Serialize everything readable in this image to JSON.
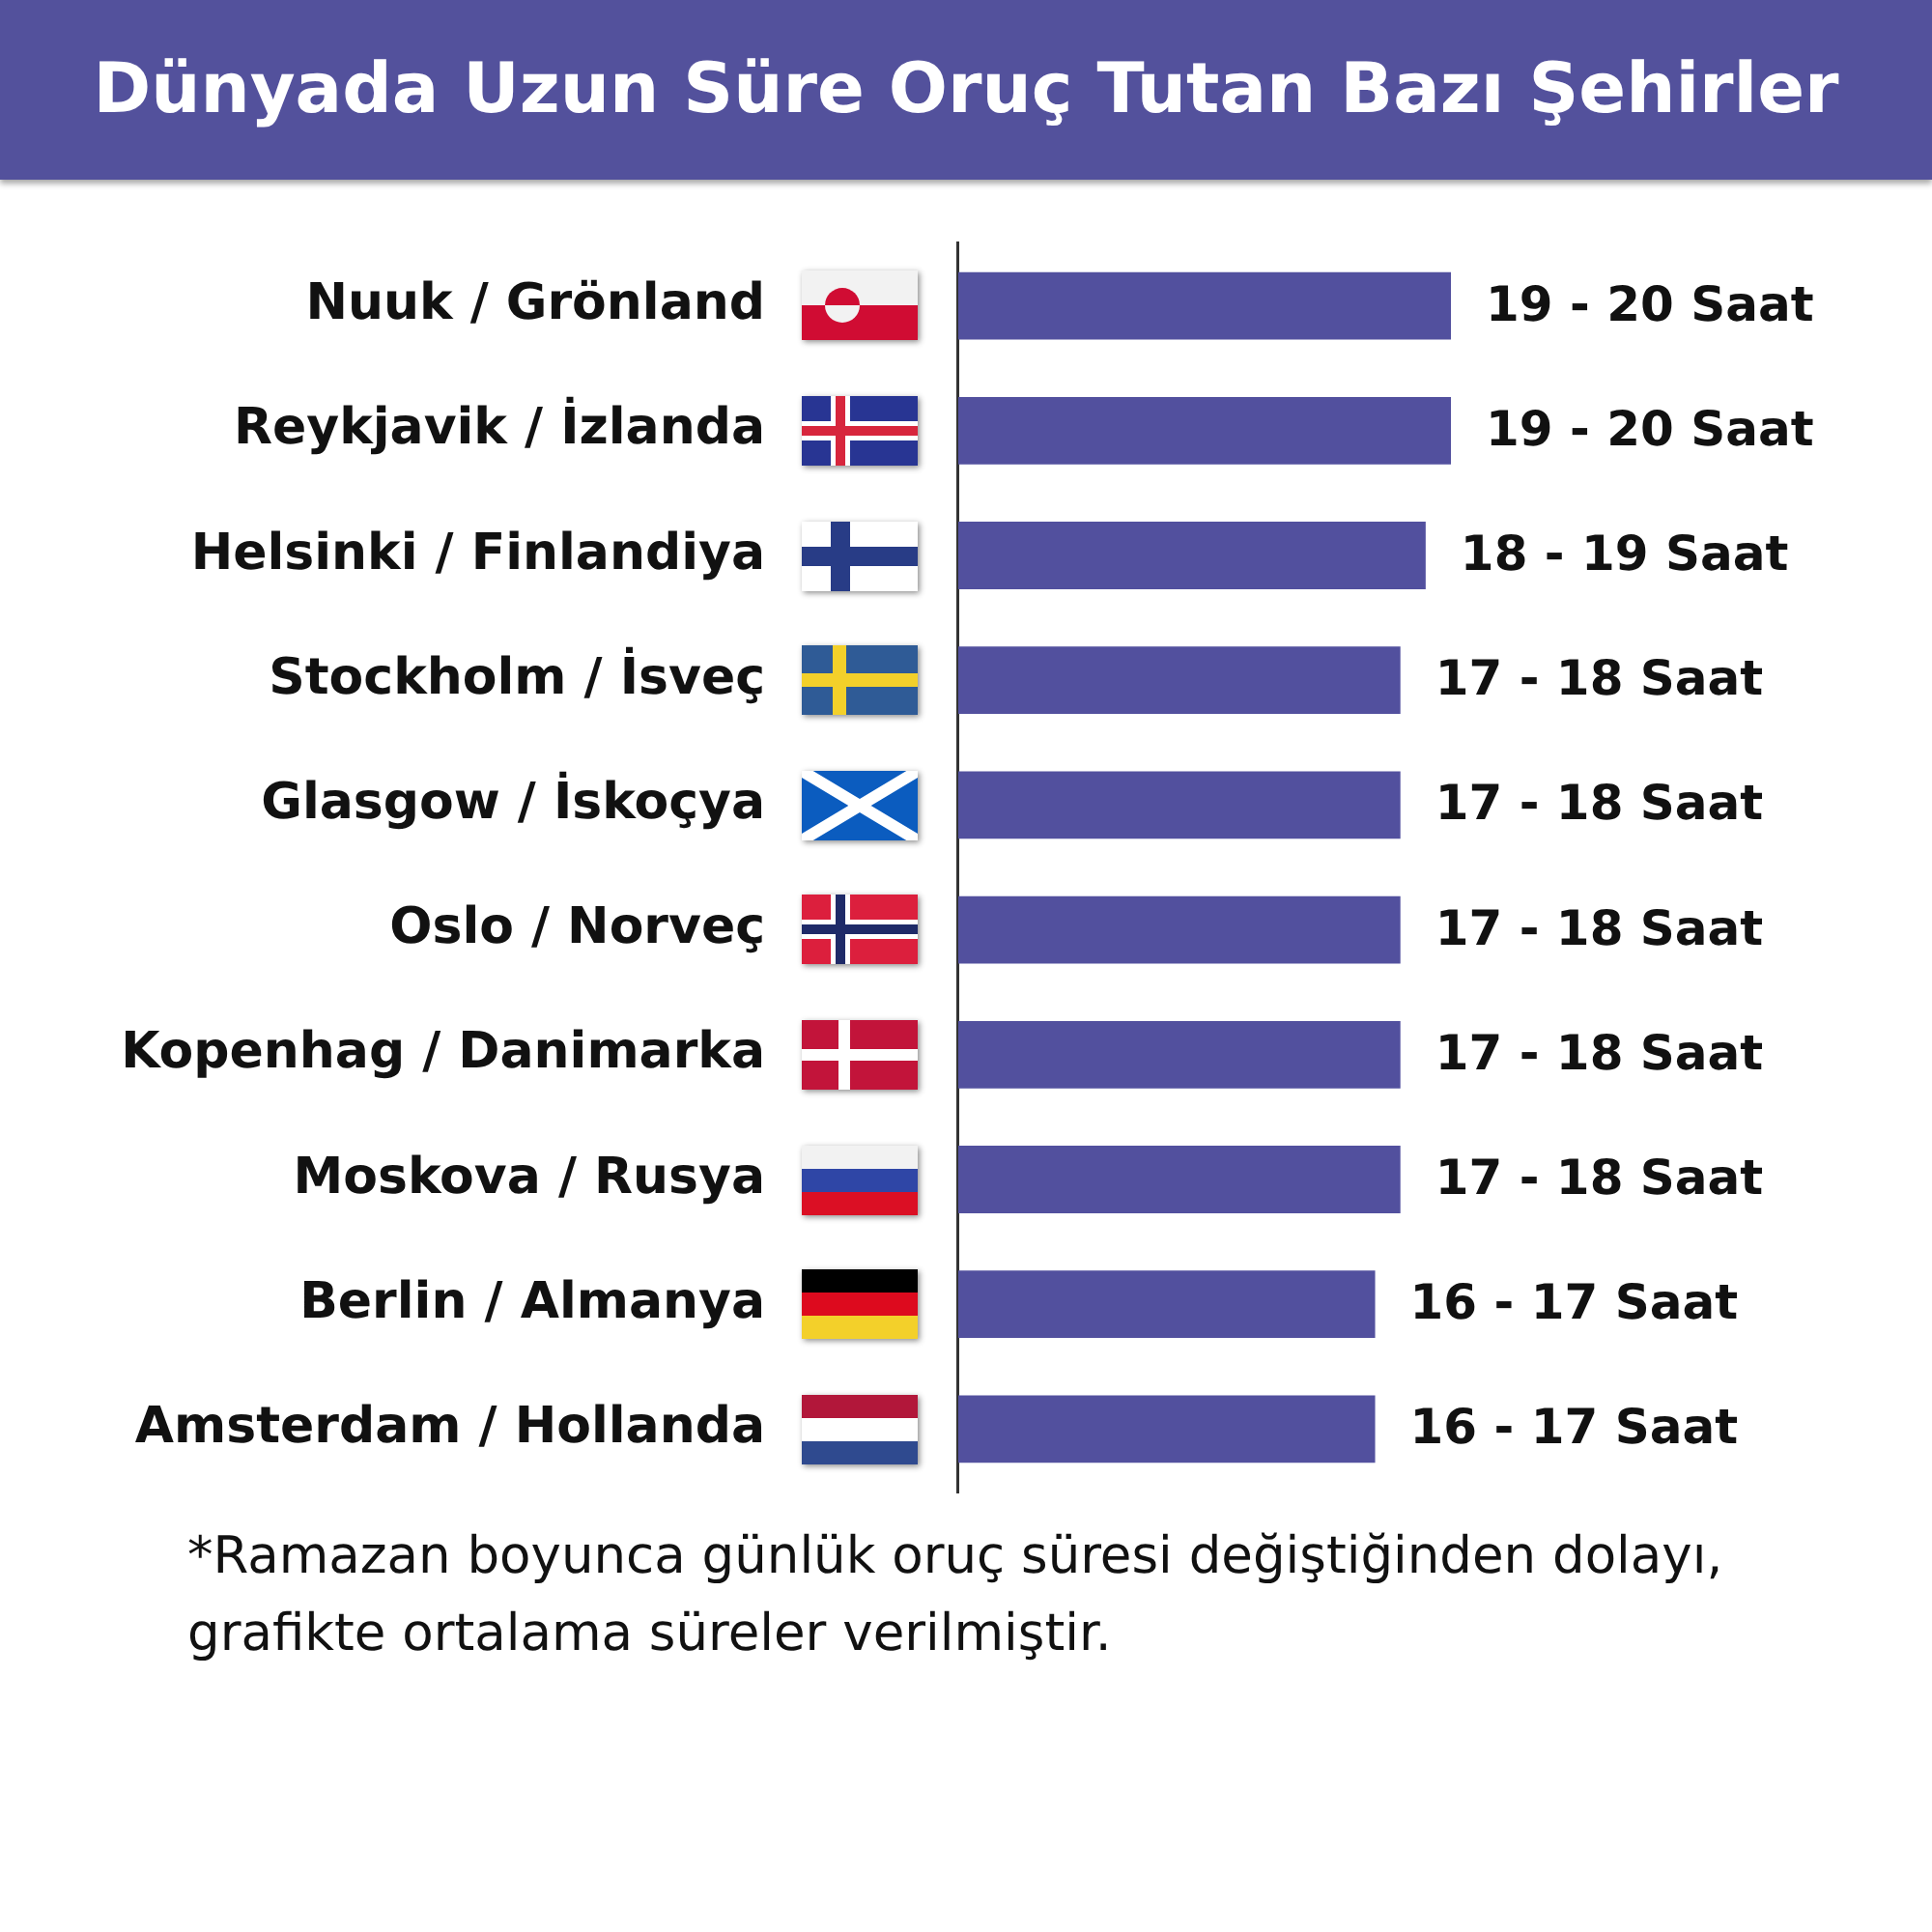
{
  "chart_data": {
    "type": "bar",
    "orientation": "horizontal",
    "title": "Dünyada Uzun Süre Oruç Tutan Bazı Şehirler",
    "categories": [
      "Nuuk / Grönland",
      "Reykjavik / İzlanda",
      "Helsinki / Finlandiya",
      "Stockholm / İsveç",
      "Glasgow / İskoçya",
      "Oslo / Norveç",
      "Kopenhag / Danimarka",
      "Moskova / Rusya",
      "Berlin / Almanya",
      "Amsterdam / Hollanda"
    ],
    "values": [
      19.5,
      19.5,
      18.5,
      17.5,
      17.5,
      17.5,
      17.5,
      17.5,
      16.5,
      16.5
    ],
    "value_labels": [
      "19 - 20 Saat",
      "19 - 20 Saat",
      "18 - 19 Saat",
      "17 - 18 Saat",
      "17 - 18 Saat",
      "17 - 18 Saat",
      "17 - 18 Saat",
      "17 - 18 Saat",
      "16 - 17 Saat",
      "16 - 17 Saat"
    ],
    "color": "#52509e",
    "tick_labels": "y",
    "annotations": [
      "*Ramazan boyunca günlük oruç süresi değiştiğinden dolayı, grafikte ortalama süreler verilmiştir."
    ]
  }
}
